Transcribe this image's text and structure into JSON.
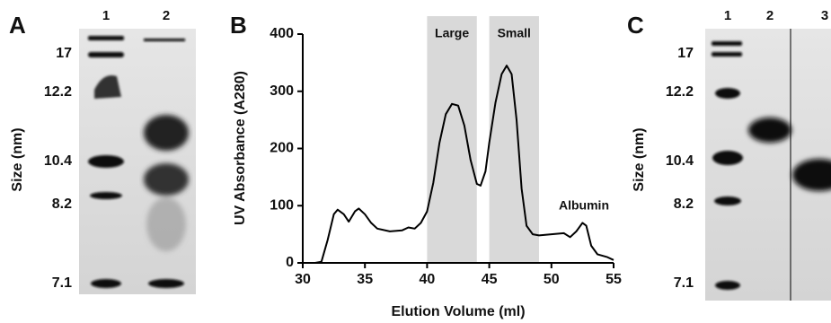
{
  "panel_a": {
    "letter": "A",
    "lanes": [
      1,
      2
    ],
    "axis_label": "Size (nm)",
    "size_labels": [
      17,
      12.2,
      10.4,
      8.2,
      7.1
    ]
  },
  "chart_data": {
    "type": "line",
    "letter": "B",
    "x_label": "Elution Volume (ml)",
    "y_label": "UV Absorbance (A280)",
    "x": [
      31,
      31.5,
      32,
      32.5,
      32.8,
      33.3,
      33.7,
      34.2,
      34.5,
      35,
      35.5,
      36,
      37,
      38,
      38.5,
      39,
      39.5,
      40,
      40.5,
      41,
      41.5,
      42,
      42.5,
      43,
      43.5,
      44,
      44.3,
      44.7,
      45,
      45.5,
      46,
      46.4,
      46.8,
      47.2,
      47.6,
      48,
      48.5,
      49,
      50,
      51,
      51.5,
      52,
      52.5,
      52.8,
      53.2,
      53.7,
      54.5,
      55
    ],
    "values": [
      0,
      2,
      40,
      85,
      93,
      85,
      72,
      90,
      95,
      85,
      70,
      60,
      55,
      57,
      62,
      60,
      70,
      90,
      140,
      210,
      260,
      278,
      275,
      240,
      180,
      138,
      135,
      160,
      210,
      280,
      330,
      345,
      330,
      250,
      130,
      65,
      50,
      48,
      50,
      52,
      45,
      55,
      70,
      65,
      30,
      15,
      10,
      5
    ],
    "color": "#000000",
    "regions": [
      {
        "label": "Large",
        "range": [
          40,
          44
        ]
      },
      {
        "label": "Small",
        "range": [
          45,
          49
        ]
      }
    ],
    "region_color": "#d9d9d9",
    "annotations": [
      "Albumin"
    ],
    "xlim": [
      30,
      55
    ],
    "xticks": [
      30,
      35,
      40,
      45,
      50,
      55
    ],
    "ylim": [
      0,
      400
    ],
    "yticks": [
      0,
      100,
      200,
      300,
      400
    ]
  },
  "panel_c": {
    "letter": "C",
    "lanes": [
      1,
      2,
      3
    ],
    "axis_label": "Size (nm)",
    "size_labels": [
      17,
      12.2,
      10.4,
      8.2,
      7.1
    ]
  }
}
